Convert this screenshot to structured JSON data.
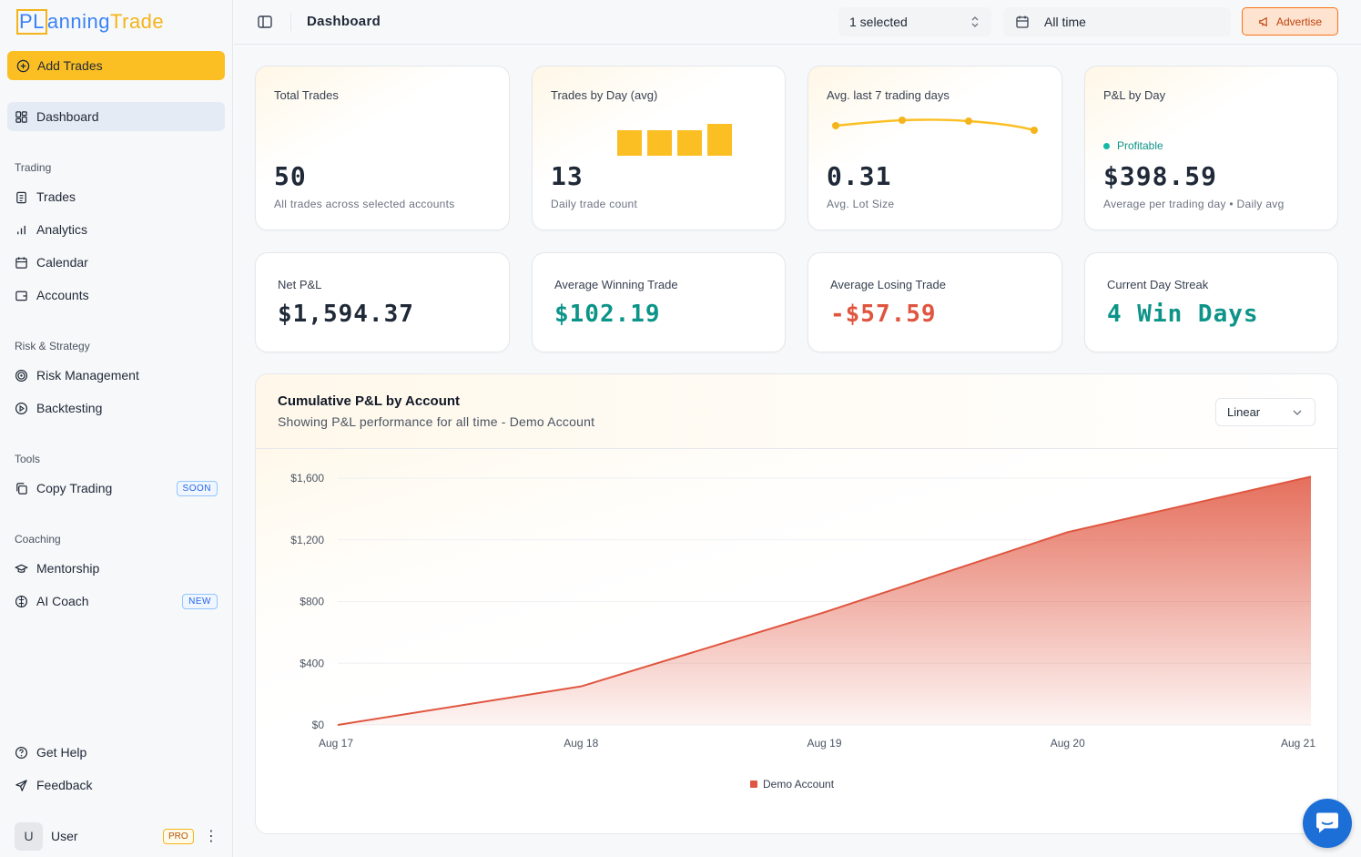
{
  "brand": {
    "logo_part1": "PL",
    "logo_part2": "anning",
    "logo_part3": "Trade"
  },
  "sidebar": {
    "add_trades": "Add Trades",
    "dashboard": "Dashboard",
    "sections": {
      "trading": "Trading",
      "risk": "Risk & Strategy",
      "tools": "Tools",
      "coaching": "Coaching"
    },
    "items": {
      "trades": "Trades",
      "analytics": "Analytics",
      "calendar": "Calendar",
      "accounts": "Accounts",
      "risk_management": "Risk Management",
      "backtesting": "Backtesting",
      "copy_trading": "Copy Trading",
      "copy_trading_badge": "SOON",
      "mentorship": "Mentorship",
      "ai_coach": "AI Coach",
      "ai_coach_badge": "NEW",
      "get_help": "Get Help",
      "feedback": "Feedback"
    },
    "user": {
      "initial": "U",
      "name": "User",
      "badge": "PRO",
      "menu": "⋮"
    }
  },
  "header": {
    "title": "Dashboard",
    "account_select": "1 selected",
    "date_range": "All time",
    "advertise": "Advertise"
  },
  "cards": {
    "total_trades": {
      "title": "Total Trades",
      "value": "50",
      "sub": "All trades across selected accounts"
    },
    "trades_by_day": {
      "title": "Trades by Day (avg)",
      "value": "13",
      "sub": "Daily trade count"
    },
    "avg_last7": {
      "title": "Avg. last 7 trading days",
      "value": "0.31",
      "sub": "Avg. Lot Size"
    },
    "pnl_by_day": {
      "title": "P&L by Day",
      "tag": "Profitable",
      "value": "$398.59",
      "sub": "Average per trading day • Daily avg"
    },
    "net_pnl": {
      "title": "Net P&L",
      "value": "$1,594.37"
    },
    "avg_win": {
      "title": "Average Winning Trade",
      "value": "$102.19"
    },
    "avg_loss": {
      "title": "Average Losing Trade",
      "value": "-$57.59"
    },
    "streak": {
      "title": "Current Day Streak",
      "value": "4 Win Days"
    }
  },
  "chart_panel": {
    "title": "Cumulative P&L by Account",
    "subtitle": "Showing P&L performance for all time - Demo Account",
    "scale": "Linear"
  },
  "colors": {
    "accent": "#fbbf24",
    "profit": "#0d9488",
    "loss": "#e0553f",
    "series": "#e0553f"
  },
  "chart_data": {
    "type": "area",
    "x": [
      "Aug 17",
      "Aug 18",
      "Aug 19",
      "Aug 20",
      "Aug 21"
    ],
    "series": [
      {
        "name": "Demo Account",
        "values": [
          0,
          250,
          730,
          1250,
          1610
        ]
      }
    ],
    "yticks": [
      "$0",
      "$400",
      "$800",
      "$1,200",
      "$1,600"
    ],
    "ytick_values": [
      0,
      400,
      800,
      1200,
      1600
    ],
    "ylim": [
      0,
      1600
    ],
    "grid": true,
    "legend": "bottom"
  }
}
